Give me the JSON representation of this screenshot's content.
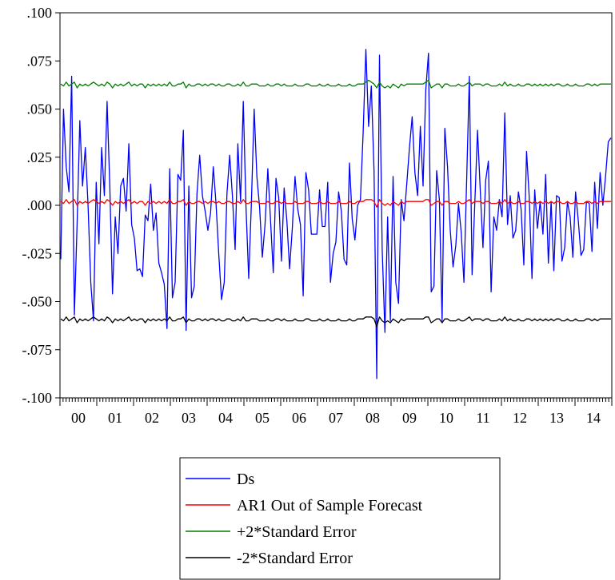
{
  "chart_data": {
    "type": "line",
    "title": "",
    "xlabel": "",
    "ylabel": "",
    "ylim": [
      -0.1,
      0.1
    ],
    "y_ticks": [
      ".100",
      ".075",
      ".050",
      ".025",
      ".000",
      "-.025",
      "-.050",
      "-.075",
      "-.100"
    ],
    "y_tick_values": [
      0.1,
      0.075,
      0.05,
      0.025,
      0.0,
      -0.025,
      -0.05,
      -0.075,
      -0.1
    ],
    "x_range": [
      2000,
      2015
    ],
    "x_tick_labels": [
      "00",
      "01",
      "02",
      "03",
      "04",
      "05",
      "06",
      "07",
      "08",
      "09",
      "10",
      "11",
      "12",
      "13",
      "14"
    ],
    "frequency": "monthly",
    "grid": false,
    "legend_position": "bottom-center",
    "series": [
      {
        "name": "Ds",
        "color": "#0000ff",
        "values": [
          -0.028,
          0.05,
          0.02,
          0.007,
          0.067,
          -0.057,
          -0.01,
          0.044,
          0.01,
          0.03,
          0.0,
          -0.04,
          -0.06,
          0.012,
          -0.02,
          0.03,
          0.005,
          0.054,
          0.01,
          -0.046,
          -0.006,
          -0.025,
          0.01,
          0.014,
          -0.003,
          0.032,
          -0.01,
          -0.017,
          -0.034,
          -0.033,
          -0.037,
          -0.005,
          -0.008,
          0.011,
          -0.013,
          -0.004,
          -0.03,
          -0.035,
          -0.041,
          -0.064,
          0.019,
          -0.048,
          -0.04,
          0.016,
          0.013,
          0.039,
          -0.065,
          0.01,
          -0.048,
          -0.042,
          0.006,
          0.026,
          0.005,
          -0.003,
          -0.013,
          -0.004,
          0.02,
          0.001,
          -0.025,
          -0.049,
          -0.04,
          0.006,
          0.026,
          0.005,
          -0.023,
          0.032,
          0.002,
          0.054,
          -0.001,
          -0.038,
          0.002,
          0.05,
          0.015,
          -0.001,
          -0.027,
          -0.01,
          0.019,
          -0.008,
          -0.035,
          0.014,
          0.004,
          -0.029,
          0.009,
          -0.008,
          -0.033,
          -0.012,
          0.015,
          -0.002,
          -0.01,
          -0.047,
          0.017,
          0.008,
          -0.015,
          -0.015,
          -0.015,
          0.008,
          -0.011,
          -0.011,
          0.012,
          -0.04,
          -0.025,
          -0.019,
          0.007,
          -0.003,
          -0.028,
          -0.031,
          0.022,
          -0.007,
          -0.018,
          0.0,
          0.003,
          0.038,
          0.081,
          0.041,
          0.062,
          0.018,
          -0.09,
          0.078,
          -0.023,
          -0.066,
          -0.006,
          -0.06,
          0.015,
          -0.04,
          -0.051,
          0.003,
          -0.008,
          0.011,
          0.03,
          0.046,
          0.017,
          0.005,
          0.041,
          0.01,
          0.06,
          0.079,
          -0.045,
          -0.042,
          0.018,
          0.003,
          -0.06,
          0.04,
          0.02,
          -0.013,
          -0.032,
          -0.021,
          0.001,
          -0.014,
          -0.04,
          0.013,
          0.067,
          -0.036,
          0.001,
          0.039,
          0.008,
          -0.022,
          0.013,
          0.023,
          -0.045,
          -0.006,
          -0.013,
          0.003,
          -0.006,
          0.048,
          -0.01,
          0.005,
          -0.017,
          -0.013,
          0.007,
          -0.002,
          -0.031,
          0.028,
          0.004,
          -0.038,
          0.008,
          -0.012,
          0.002,
          -0.015,
          0.016,
          -0.03,
          0.002,
          -0.034,
          0.005,
          0.004,
          -0.029,
          -0.022,
          0.002,
          -0.006,
          -0.027,
          0.007,
          -0.008,
          -0.026,
          -0.023,
          0.002,
          0.001,
          -0.024,
          0.012,
          -0.012,
          0.017,
          0.0,
          0.015,
          0.033,
          0.035
        ]
      },
      {
        "name": "AR1 Out of Sample Forecast",
        "color": "#ff0000",
        "values": [
          0.002,
          0.001,
          0.003,
          0.001,
          0.002,
          0.003,
          0.0,
          0.002,
          0.001,
          0.002,
          0.001,
          0.002,
          0.003,
          0.002,
          0.001,
          0.002,
          0.001,
          0.003,
          0.002,
          0.0,
          0.002,
          0.001,
          0.002,
          0.001,
          0.002,
          0.003,
          0.001,
          0.002,
          0.001,
          0.002,
          0.002,
          0.0,
          0.002,
          0.001,
          0.002,
          0.001,
          0.002,
          0.001,
          0.002,
          0.001,
          0.003,
          0.001,
          0.001,
          0.002,
          0.002,
          0.003,
          0.0,
          0.002,
          0.001,
          0.001,
          0.002,
          0.002,
          0.001,
          0.002,
          0.001,
          0.002,
          0.002,
          0.001,
          0.002,
          0.001,
          0.001,
          0.002,
          0.002,
          0.001,
          0.001,
          0.002,
          0.001,
          0.003,
          0.001,
          0.001,
          0.002,
          0.002,
          0.002,
          0.001,
          0.001,
          0.001,
          0.002,
          0.001,
          0.001,
          0.002,
          0.002,
          0.001,
          0.002,
          0.001,
          0.001,
          0.001,
          0.002,
          0.001,
          0.001,
          0.001,
          0.002,
          0.002,
          0.001,
          0.001,
          0.001,
          0.002,
          0.001,
          0.001,
          0.002,
          0.001,
          0.001,
          0.001,
          0.002,
          0.001,
          0.001,
          0.001,
          0.002,
          0.001,
          0.001,
          0.002,
          0.002,
          0.002,
          0.003,
          0.003,
          0.003,
          0.002,
          -0.001,
          0.003,
          0.001,
          0.0,
          0.001,
          0.0,
          0.002,
          0.001,
          0.0,
          0.002,
          0.001,
          0.002,
          0.002,
          0.002,
          0.002,
          0.002,
          0.002,
          0.002,
          0.003,
          0.003,
          0.0,
          0.001,
          0.002,
          0.002,
          0.0,
          0.002,
          0.002,
          0.001,
          0.001,
          0.001,
          0.002,
          0.001,
          0.001,
          0.002,
          0.003,
          0.001,
          0.002,
          0.002,
          0.002,
          0.001,
          0.002,
          0.002,
          0.001,
          0.001,
          0.001,
          0.002,
          0.001,
          0.003,
          0.001,
          0.002,
          0.001,
          0.001,
          0.002,
          0.001,
          0.001,
          0.002,
          0.002,
          0.001,
          0.002,
          0.001,
          0.002,
          0.001,
          0.002,
          0.001,
          0.002,
          0.001,
          0.002,
          0.002,
          0.001,
          0.001,
          0.002,
          0.001,
          0.001,
          0.002,
          0.001,
          0.001,
          0.001,
          0.002,
          0.002,
          0.001,
          0.002,
          0.001,
          0.002,
          0.002,
          0.002,
          0.002,
          0.002
        ]
      },
      {
        "name": "+2*Standard Error",
        "color": "#008000",
        "values": [
          0.063,
          0.062,
          0.064,
          0.062,
          0.063,
          0.064,
          0.061,
          0.063,
          0.062,
          0.063,
          0.062,
          0.063,
          0.064,
          0.063,
          0.062,
          0.063,
          0.062,
          0.064,
          0.063,
          0.061,
          0.063,
          0.062,
          0.063,
          0.062,
          0.063,
          0.064,
          0.062,
          0.063,
          0.062,
          0.063,
          0.063,
          0.061,
          0.063,
          0.062,
          0.063,
          0.062,
          0.063,
          0.062,
          0.063,
          0.062,
          0.064,
          0.062,
          0.062,
          0.063,
          0.063,
          0.064,
          0.061,
          0.063,
          0.062,
          0.062,
          0.063,
          0.063,
          0.062,
          0.063,
          0.062,
          0.063,
          0.063,
          0.062,
          0.063,
          0.062,
          0.062,
          0.063,
          0.063,
          0.062,
          0.062,
          0.063,
          0.062,
          0.064,
          0.062,
          0.062,
          0.063,
          0.063,
          0.063,
          0.062,
          0.062,
          0.062,
          0.063,
          0.062,
          0.062,
          0.063,
          0.063,
          0.062,
          0.063,
          0.062,
          0.062,
          0.062,
          0.063,
          0.062,
          0.062,
          0.062,
          0.063,
          0.063,
          0.062,
          0.062,
          0.062,
          0.063,
          0.062,
          0.062,
          0.063,
          0.062,
          0.062,
          0.062,
          0.063,
          0.062,
          0.062,
          0.062,
          0.063,
          0.062,
          0.062,
          0.063,
          0.063,
          0.063,
          0.064,
          0.065,
          0.064,
          0.063,
          0.061,
          0.064,
          0.062,
          0.061,
          0.062,
          0.061,
          0.063,
          0.062,
          0.061,
          0.063,
          0.062,
          0.063,
          0.063,
          0.063,
          0.063,
          0.063,
          0.063,
          0.063,
          0.064,
          0.065,
          0.061,
          0.062,
          0.063,
          0.063,
          0.061,
          0.063,
          0.063,
          0.062,
          0.062,
          0.062,
          0.063,
          0.062,
          0.062,
          0.063,
          0.064,
          0.062,
          0.063,
          0.063,
          0.063,
          0.062,
          0.063,
          0.063,
          0.062,
          0.062,
          0.062,
          0.063,
          0.062,
          0.064,
          0.062,
          0.063,
          0.062,
          0.062,
          0.063,
          0.062,
          0.062,
          0.063,
          0.063,
          0.062,
          0.063,
          0.062,
          0.063,
          0.062,
          0.063,
          0.062,
          0.063,
          0.062,
          0.063,
          0.063,
          0.062,
          0.062,
          0.063,
          0.062,
          0.062,
          0.063,
          0.062,
          0.062,
          0.062,
          0.063,
          0.063,
          0.062,
          0.063,
          0.062,
          0.063,
          0.063,
          0.063,
          0.063,
          0.063
        ]
      },
      {
        "name": "-2*Standard Error",
        "color": "#000000",
        "values": [
          -0.059,
          -0.06,
          -0.058,
          -0.06,
          -0.059,
          -0.058,
          -0.061,
          -0.059,
          -0.06,
          -0.059,
          -0.06,
          -0.059,
          -0.058,
          -0.059,
          -0.06,
          -0.059,
          -0.06,
          -0.058,
          -0.059,
          -0.061,
          -0.059,
          -0.06,
          -0.059,
          -0.06,
          -0.059,
          -0.058,
          -0.06,
          -0.059,
          -0.06,
          -0.059,
          -0.059,
          -0.061,
          -0.059,
          -0.06,
          -0.059,
          -0.06,
          -0.059,
          -0.06,
          -0.059,
          -0.06,
          -0.058,
          -0.06,
          -0.06,
          -0.059,
          -0.059,
          -0.058,
          -0.061,
          -0.059,
          -0.06,
          -0.06,
          -0.059,
          -0.059,
          -0.06,
          -0.059,
          -0.06,
          -0.059,
          -0.059,
          -0.06,
          -0.059,
          -0.06,
          -0.06,
          -0.059,
          -0.059,
          -0.06,
          -0.06,
          -0.059,
          -0.06,
          -0.058,
          -0.06,
          -0.06,
          -0.059,
          -0.059,
          -0.059,
          -0.06,
          -0.06,
          -0.06,
          -0.059,
          -0.06,
          -0.06,
          -0.059,
          -0.059,
          -0.06,
          -0.059,
          -0.06,
          -0.06,
          -0.06,
          -0.059,
          -0.06,
          -0.06,
          -0.06,
          -0.059,
          -0.059,
          -0.06,
          -0.06,
          -0.06,
          -0.059,
          -0.06,
          -0.06,
          -0.059,
          -0.06,
          -0.06,
          -0.06,
          -0.059,
          -0.06,
          -0.06,
          -0.06,
          -0.059,
          -0.06,
          -0.06,
          -0.059,
          -0.059,
          -0.059,
          -0.058,
          -0.058,
          -0.058,
          -0.059,
          -0.063,
          -0.058,
          -0.06,
          -0.061,
          -0.06,
          -0.061,
          -0.059,
          -0.06,
          -0.061,
          -0.059,
          -0.06,
          -0.059,
          -0.059,
          -0.059,
          -0.059,
          -0.059,
          -0.059,
          -0.059,
          -0.058,
          -0.058,
          -0.061,
          -0.06,
          -0.059,
          -0.059,
          -0.061,
          -0.059,
          -0.059,
          -0.06,
          -0.06,
          -0.06,
          -0.059,
          -0.06,
          -0.06,
          -0.059,
          -0.058,
          -0.06,
          -0.059,
          -0.059,
          -0.059,
          -0.06,
          -0.059,
          -0.059,
          -0.06,
          -0.06,
          -0.06,
          -0.059,
          -0.06,
          -0.058,
          -0.06,
          -0.059,
          -0.06,
          -0.06,
          -0.059,
          -0.06,
          -0.06,
          -0.059,
          -0.059,
          -0.06,
          -0.059,
          -0.06,
          -0.059,
          -0.06,
          -0.059,
          -0.06,
          -0.059,
          -0.06,
          -0.059,
          -0.059,
          -0.06,
          -0.06,
          -0.059,
          -0.06,
          -0.06,
          -0.059,
          -0.06,
          -0.06,
          -0.06,
          -0.059,
          -0.059,
          -0.06,
          -0.059,
          -0.06,
          -0.059,
          -0.059,
          -0.059,
          -0.059,
          -0.059
        ]
      }
    ]
  }
}
